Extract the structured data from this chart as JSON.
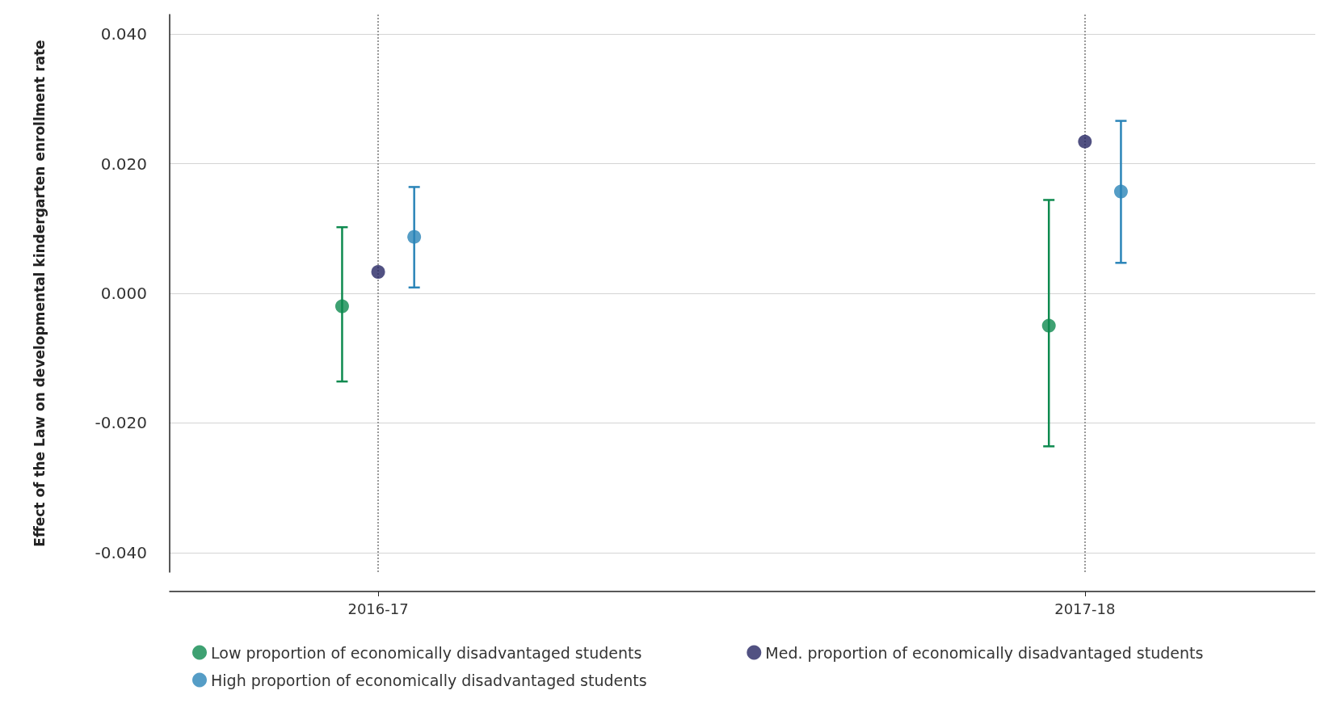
{
  "chart_data": {
    "type": "scatter",
    "ylabel": "Effect of the Law on developmental kindergarten enrollment rate",
    "categories": [
      "2016-17",
      "2017-18"
    ],
    "series": [
      {
        "name": "Low proportion of economically disadvantaged students",
        "color": "#0e8a4f",
        "values": [
          -0.002,
          -0.005
        ],
        "errors": [
          [
            -0.0136,
            0.0102
          ],
          [
            -0.0236,
            0.0144
          ]
        ]
      },
      {
        "name": "Med. proportion of economically disadvantaged students",
        "color": "#262663",
        "values": [
          0.0033,
          0.0234
        ]
      },
      {
        "name": "High proportion of economically disadvantaged students",
        "color": "#2a84b8",
        "values": [
          0.0087,
          0.0157
        ],
        "errors": [
          [
            0.0009,
            0.0164
          ],
          [
            0.0047,
            0.0266
          ]
        ]
      }
    ],
    "ylim": [
      -0.043,
      0.043
    ],
    "yticks": [
      {
        "value": -0.04,
        "label": "-0.040"
      },
      {
        "value": -0.02,
        "label": "-0.020"
      },
      {
        "value": 0,
        "label": "0.000"
      },
      {
        "value": 0.02,
        "label": "0.020"
      },
      {
        "value": 0.04,
        "label": "0.040"
      }
    ],
    "grid": true,
    "legend": "bottom",
    "marker": "circle"
  }
}
